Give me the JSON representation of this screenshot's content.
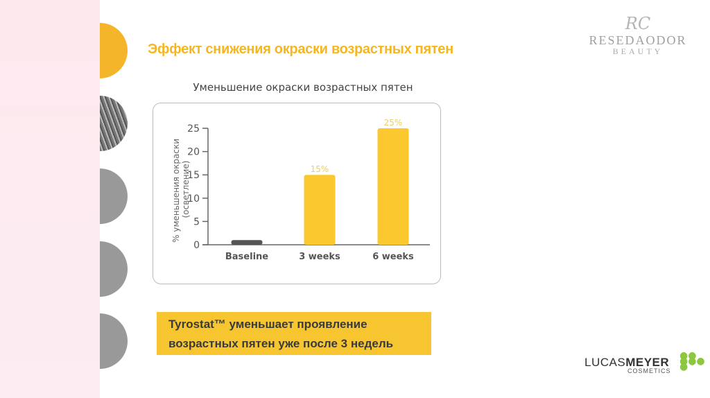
{
  "slide": {
    "title": "Эффект снижения окраски возрастных пятен",
    "callout": [
      "Tyrostat™ уменьшает проявление",
      "возрастных пятен уже после 3 недель"
    ],
    "accent_color": "#f5b720",
    "callout_color": "#f7c52f"
  },
  "logos": {
    "resedaodor": {
      "monogram": "RC",
      "name": "RESEDAODOR",
      "sub": "BEAUTY"
    },
    "lucasmeyer": {
      "part1": "LUCAS",
      "part2": "MEYER",
      "sub": "COSMETICS"
    }
  },
  "chart_data": {
    "type": "bar",
    "title": "Уменьшение окраски возрастных пятен",
    "ylabel": [
      "% уменьшения окраски",
      "(осветление)"
    ],
    "categories": [
      "Baseline",
      "3 weeks",
      "6 weeks"
    ],
    "values": [
      1,
      15,
      25
    ],
    "data_labels": [
      "",
      "15%",
      "25%"
    ],
    "colors": [
      "#555555",
      "#fbc82f",
      "#fbc82f"
    ],
    "yticks": [
      0,
      5,
      10,
      15,
      20,
      25
    ],
    "ylim": [
      0,
      25
    ],
    "grid": false
  }
}
